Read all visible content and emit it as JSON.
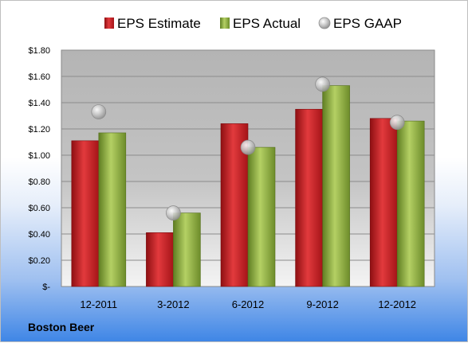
{
  "company": "Boston Beer",
  "chart_data": {
    "type": "bar",
    "categories": [
      "12-2011",
      "3-2012",
      "6-2012",
      "9-2012",
      "12-2012"
    ],
    "series": [
      {
        "name": "EPS Estimate",
        "kind": "bar",
        "color": "#c0171b",
        "values": [
          1.11,
          0.41,
          1.24,
          1.35,
          1.28
        ]
      },
      {
        "name": "EPS Actual",
        "kind": "bar",
        "color": "#8bab3c",
        "values": [
          1.17,
          0.56,
          1.06,
          1.53,
          1.26
        ]
      },
      {
        "name": "EPS GAAP",
        "kind": "marker",
        "color": "#b8b8b8",
        "values": [
          1.33,
          0.56,
          1.06,
          1.54,
          1.25
        ]
      }
    ],
    "ylim": [
      0,
      1.8
    ],
    "yticks": [
      0,
      0.2,
      0.4,
      0.6,
      0.8,
      1.0,
      1.2,
      1.4,
      1.6,
      1.8
    ],
    "ytick_labels": [
      "$-",
      "$0.20",
      "$0.40",
      "$0.60",
      "$0.80",
      "$1.00",
      "$1.20",
      "$1.40",
      "$1.60",
      "$1.80"
    ],
    "grid": true,
    "legend_position": "top",
    "title": "",
    "xlabel": "",
    "ylabel": ""
  }
}
